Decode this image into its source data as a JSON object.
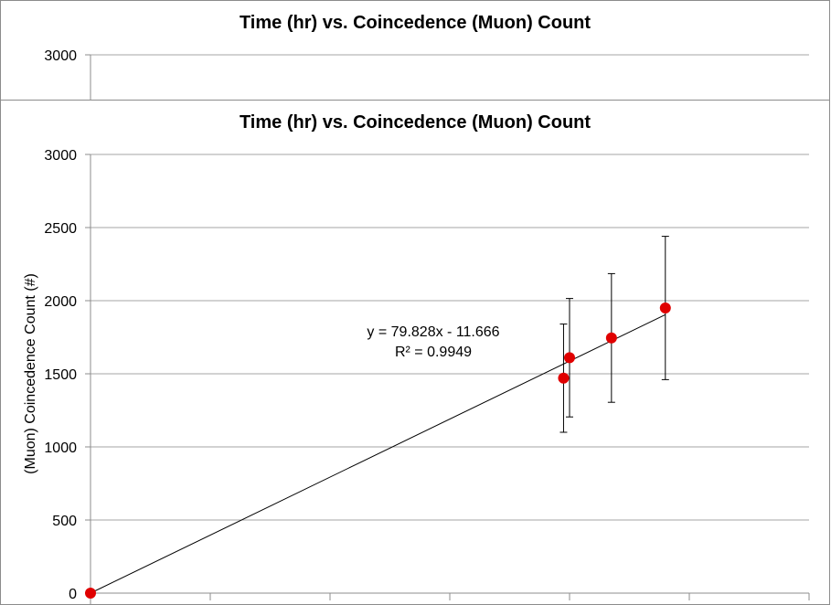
{
  "chart_data": [
    {
      "type": "scatter",
      "title": "Time (hr) vs. Coincedence (Muon) Count",
      "ylabel": "",
      "xlabel": "",
      "yticks": [
        "3000"
      ],
      "partially_hidden": true
    },
    {
      "type": "scatter",
      "title": "Time (hr) vs. Coincedence (Muon) Count",
      "xlabel": "",
      "ylabel": "(Muon) Coincedence Count (#)",
      "ylim": [
        0,
        3000
      ],
      "yticks": [
        "0",
        "500",
        "1000",
        "1500",
        "2000",
        "2500",
        "3000"
      ],
      "xlim": [
        0,
        30
      ],
      "grid": true,
      "series": [
        {
          "color": "#e00000",
          "points": [
            {
              "x": 0.0,
              "y": 0,
              "err": 0
            },
            {
              "x": 19.75,
              "y": 1470,
              "err": 370
            },
            {
              "x": 20.0,
              "y": 1610,
              "err": 405
            },
            {
              "x": 21.75,
              "y": 1745,
              "err": 440
            },
            {
              "x": 24.0,
              "y": 1950,
              "err": 490
            }
          ]
        }
      ],
      "trendline": {
        "type": "linear",
        "slope": 79.828,
        "intercept": -11.666,
        "x_range": [
          0,
          24
        ],
        "color": "#000000",
        "equation_label": "y = 79.828x - 11.666",
        "r2_label": "R² = 0.9949"
      }
    }
  ]
}
